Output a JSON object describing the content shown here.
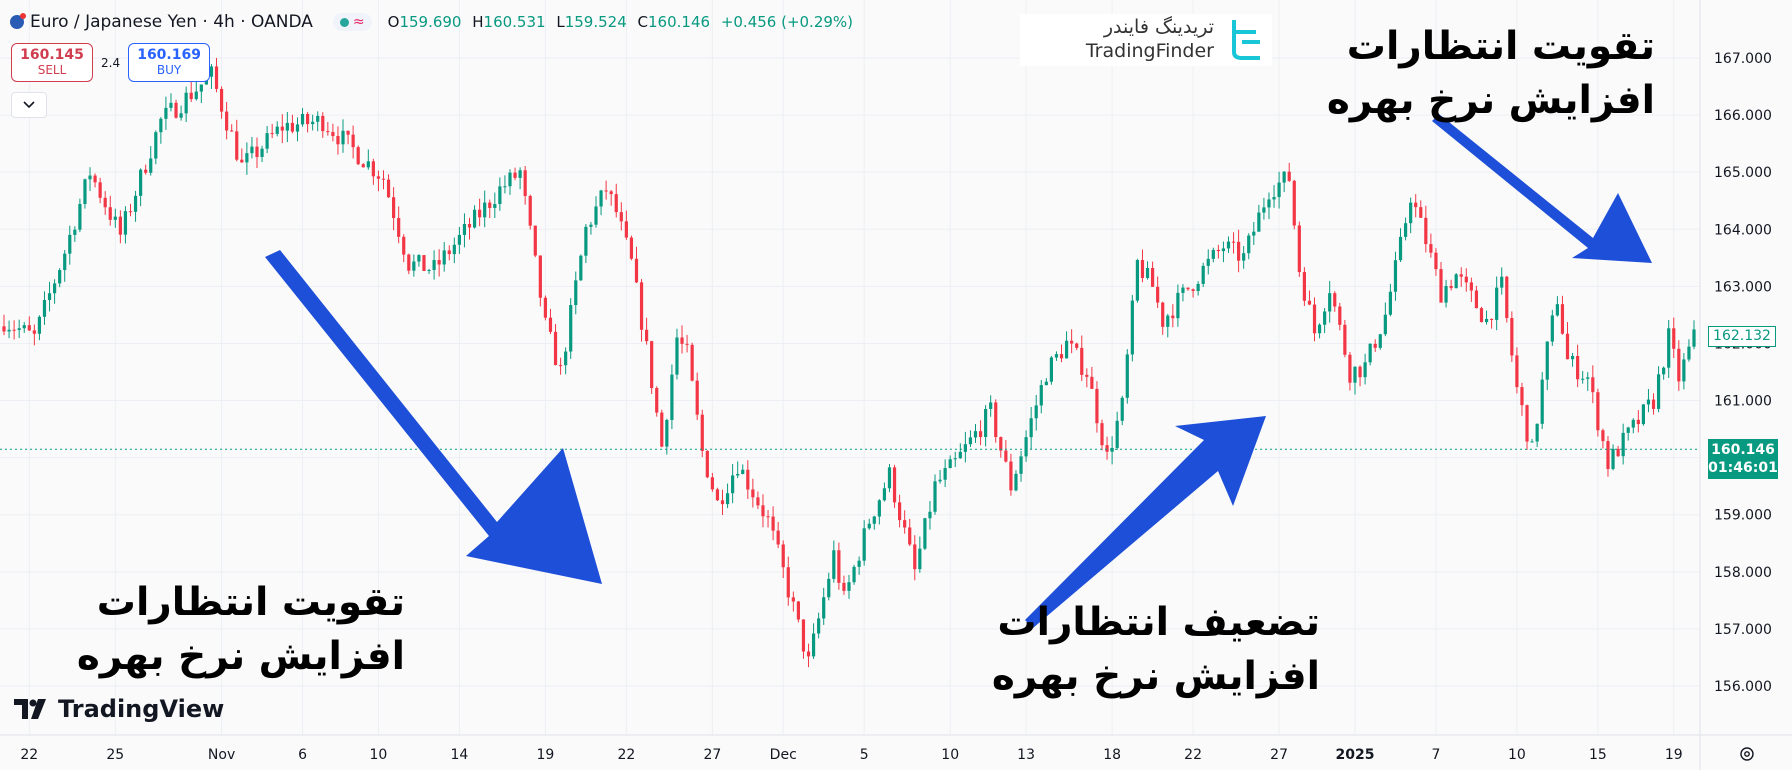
{
  "header": {
    "symbol": "Euro / Japanese Yen · 4h · OANDA",
    "approx_icon": "≈",
    "o_label": "O",
    "o_value": "159.690",
    "h_label": "H",
    "h_value": "160.531",
    "l_label": "L",
    "l_value": "159.524",
    "c_label": "C",
    "c_value": "160.146",
    "change": "+0.456 (+0.29%)"
  },
  "trade": {
    "sell_price": "160.145",
    "sell_label": "SELL",
    "spread": "2.4",
    "buy_price": "160.169",
    "buy_label": "BUY"
  },
  "watermark": {
    "fa": "تریدینگ فایندر",
    "en": "TradingFinder",
    "icon": "tradingfinder-logo-icon"
  },
  "tv_brand": {
    "text": "TradingView",
    "icon": "tradingview-logo-icon"
  },
  "annotations": [
    {
      "line1": "تقویت انتظارات",
      "line2": "افزایش نرخ بهره"
    },
    {
      "line1": "تضعیف انتظارات",
      "line2": "افزایش نرخ بهره"
    },
    {
      "line1": "تقویت انتظارات",
      "line2": "افزایش نرخ بهره"
    }
  ],
  "price_tags": {
    "prev": "162.132",
    "last": "160.146",
    "countdown": "01:46:01"
  },
  "colors": {
    "up": "#089981",
    "down": "#f23645",
    "arrow": "#1e4fd8",
    "last_line": "#089981"
  },
  "chart_data": {
    "type": "candlestick",
    "title": "",
    "xlabel": "",
    "ylabel": "",
    "ylim": [
      155.8,
      167.2
    ],
    "y_ticks": [
      "156.000",
      "157.000",
      "158.000",
      "159.000",
      "160.000",
      "161.000",
      "162.000",
      "163.000",
      "164.000",
      "165.000",
      "166.000",
      "167.000"
    ],
    "x_ticks": [
      "22",
      "25",
      "Nov",
      "6",
      "10",
      "14",
      "19",
      "22",
      "27",
      "Dec",
      "5",
      "10",
      "13",
      "18",
      "22",
      "27",
      "2025",
      "7",
      "10",
      "15",
      "19"
    ],
    "x_tick_index": [
      5,
      22,
      43,
      59,
      74,
      90,
      107,
      123,
      140,
      154,
      170,
      187,
      202,
      219,
      235,
      252,
      267,
      283,
      299,
      315,
      330
    ],
    "price_path": [
      [
        0,
        162.4
      ],
      [
        6,
        162.1
      ],
      [
        12,
        163.6
      ],
      [
        17,
        165.0
      ],
      [
        23,
        163.9
      ],
      [
        31,
        165.9
      ],
      [
        41,
        166.7
      ],
      [
        47,
        165.1
      ],
      [
        55,
        165.8
      ],
      [
        63,
        165.9
      ],
      [
        75,
        164.9
      ],
      [
        80,
        163.4
      ],
      [
        85,
        163.3
      ],
      [
        98,
        164.7
      ],
      [
        102,
        165.0
      ],
      [
        107,
        162.3
      ],
      [
        110,
        161.5
      ],
      [
        115,
        164.0
      ],
      [
        119,
        164.7
      ],
      [
        121,
        164.3
      ],
      [
        124,
        163.4
      ],
      [
        127,
        161.9
      ],
      [
        130,
        160.2
      ],
      [
        133,
        162.1
      ],
      [
        135,
        161.8
      ],
      [
        138,
        160.1
      ],
      [
        141,
        159.2
      ],
      [
        145,
        159.9
      ],
      [
        151,
        158.9
      ],
      [
        154,
        158.0
      ],
      [
        159,
        156.4
      ],
      [
        164,
        158.3
      ],
      [
        166,
        157.5
      ],
      [
        171,
        158.9
      ],
      [
        175,
        159.7
      ],
      [
        180,
        158.0
      ],
      [
        184,
        159.5
      ],
      [
        188,
        159.9
      ],
      [
        195,
        160.8
      ],
      [
        199,
        159.5
      ],
      [
        206,
        161.5
      ],
      [
        210,
        162.0
      ],
      [
        214,
        161.5
      ],
      [
        218,
        160.0
      ],
      [
        221,
        160.9
      ],
      [
        224,
        163.4
      ],
      [
        227,
        163.0
      ],
      [
        229,
        162.4
      ],
      [
        237,
        163.3
      ],
      [
        241,
        163.7
      ],
      [
        245,
        163.5
      ],
      [
        250,
        164.7
      ],
      [
        254,
        164.9
      ],
      [
        256,
        163.3
      ],
      [
        259,
        162.2
      ],
      [
        262,
        163.0
      ],
      [
        266,
        161.5
      ],
      [
        269,
        161.6
      ],
      [
        273,
        162.5
      ],
      [
        276,
        163.7
      ],
      [
        278,
        164.6
      ],
      [
        281,
        163.8
      ],
      [
        284,
        162.9
      ],
      [
        287,
        163.2
      ],
      [
        293,
        162.4
      ],
      [
        296,
        163.0
      ],
      [
        299,
        161.2
      ],
      [
        302,
        160.1
      ],
      [
        305,
        161.9
      ],
      [
        307,
        162.8
      ],
      [
        309,
        161.7
      ],
      [
        313,
        161.4
      ],
      [
        317,
        159.9
      ],
      [
        321,
        160.4
      ],
      [
        326,
        161.0
      ],
      [
        329,
        162.1
      ],
      [
        331,
        161.4
      ],
      [
        334,
        162.1
      ]
    ],
    "last_price": 160.146,
    "prev_price_tag": 162.132
  }
}
